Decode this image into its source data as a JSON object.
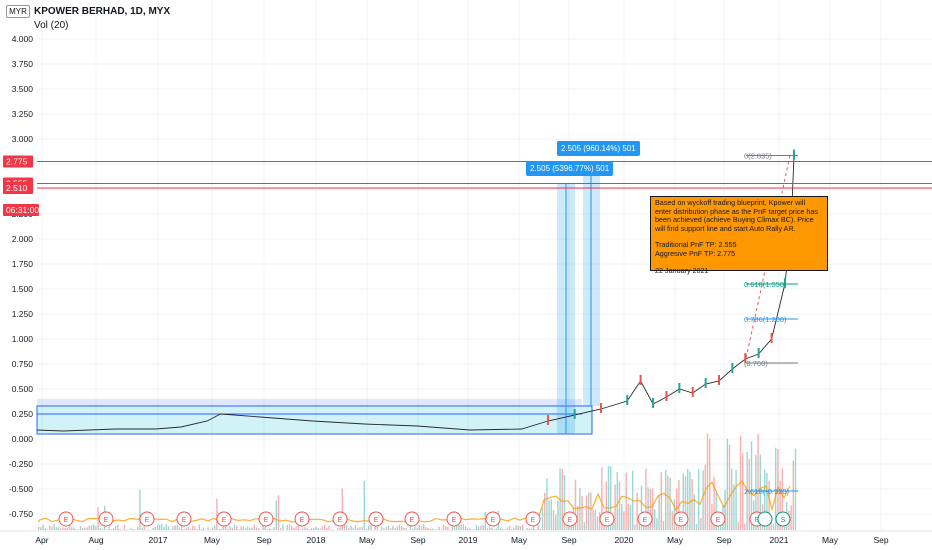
{
  "header": {
    "currency": "MYR",
    "title": "KPOWER BERHAD, 1D, MYX",
    "volume_label": "Vol (20)"
  },
  "price_axis": {
    "labels": [
      "4.000",
      "3.750",
      "3.500",
      "3.250",
      "3.000",
      "2.750",
      "2.500",
      "2.250",
      "2.000",
      "1.750",
      "1.500",
      "1.250",
      "1.000",
      "0.750",
      "0.500",
      "0.250",
      "0.000",
      "-0.250",
      "-0.500",
      "-0.750"
    ],
    "badges": [
      {
        "text": "2.775",
        "color": "#f23645"
      },
      {
        "text": "2.555",
        "color": "#f23645"
      },
      {
        "text": "2.510",
        "color": "#f23645"
      },
      {
        "text": "06:31:00",
        "color": "#f23645"
      }
    ]
  },
  "time_axis": {
    "labels": [
      "Apr",
      "Aug",
      "2017",
      "May",
      "Sep",
      "2018",
      "May",
      "Sep",
      "2019",
      "May",
      "Sep",
      "2020",
      "May",
      "Sep",
      "2021",
      "May",
      "Sep"
    ]
  },
  "measure_tags": [
    {
      "text": "2.505 (960.14%) 501"
    },
    {
      "text": "2.505 (5396.77%) 501"
    }
  ],
  "fib_labels": [
    {
      "text": "0(2.835)",
      "color": "#787b86"
    },
    {
      "text": "0.618(1.550)",
      "color": "#089981"
    },
    {
      "text": "0.786(1.200)",
      "color": "#2196f3"
    },
    {
      "text": "(0.760)",
      "color": "#787b86"
    },
    {
      "text": "2.618(-0.520)",
      "color": "#2196f3"
    }
  ],
  "note": {
    "paragraph1": "Based on wyckoff trading blueprint, Kpower will enter distribution phase as the PnF target price has been achieved (achieve Buying Climax BC). Price will find support line and start Auto Rally AR.",
    "traditional": "Traditional PnF TP: 2.555",
    "aggressive": "Aggresive PnF TP: 2.775",
    "date": "22 January 2021"
  },
  "event_markers": {
    "earnings_label": "E",
    "dividend_label": "S"
  },
  "chart_data": {
    "type": "line",
    "title": "KPOWER BERHAD, 1D, MYX",
    "series": [
      {
        "x": [
          "2016-04",
          "2016-06",
          "2016-08",
          "2016-10",
          "2017-01",
          "2017-03",
          "2017-05",
          "2017-06",
          "2017-09",
          "2018-01",
          "2018-05",
          "2018-09",
          "2019-01",
          "2019-05",
          "2019-07",
          "2019-09",
          "2019-11",
          "2020-01",
          "2020-02",
          "2020-03",
          "2020-04",
          "2020-05",
          "2020-06",
          "2020-07",
          "2020-08",
          "2020-09",
          "2020-10",
          "2020-11",
          "2020-12",
          "2021-01",
          "2021-01-15",
          "2021-01-22"
        ],
        "values": [
          0.09,
          0.08,
          0.09,
          0.1,
          0.1,
          0.12,
          0.18,
          0.25,
          0.22,
          0.18,
          0.15,
          0.13,
          0.09,
          0.1,
          0.18,
          0.24,
          0.3,
          0.38,
          0.58,
          0.35,
          0.42,
          0.5,
          0.46,
          0.55,
          0.58,
          0.7,
          0.8,
          0.85,
          1.0,
          1.55,
          2.1,
          2.835
        ]
      }
    ],
    "ylim": [
      -0.85,
      4.1
    ],
    "price_lines": [
      2.775,
      2.555,
      2.51
    ],
    "consolidation_range": {
      "low": 0.05,
      "high": 0.33
    },
    "fib_levels": [
      2.835,
      1.55,
      1.2,
      0.76,
      -0.52
    ]
  }
}
